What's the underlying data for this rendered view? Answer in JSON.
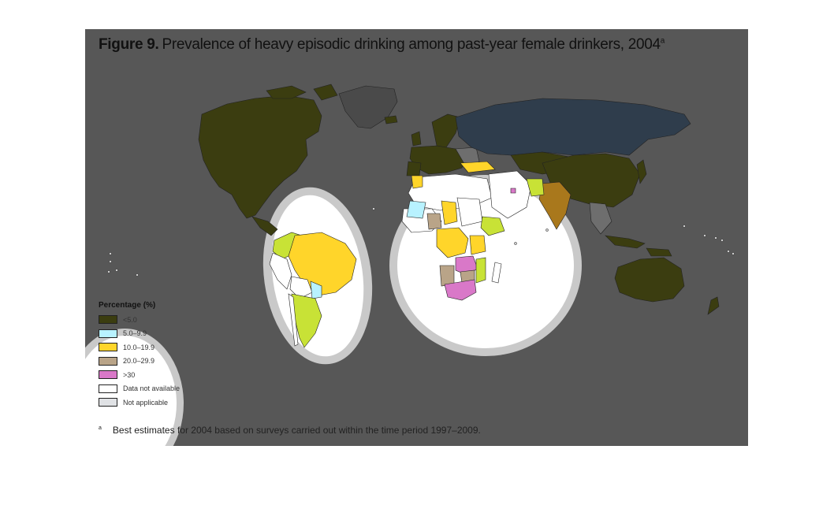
{
  "figure_label": "Figure 9.",
  "title": "Prevalence of heavy episodic drinking among past-year female drinkers, 2004",
  "title_note": "a",
  "legend": {
    "title": "Percentage (%)",
    "items": [
      {
        "label": "<5.0",
        "color": "#3b3d10"
      },
      {
        "label": "5.0–9.9",
        "color": "#b8f2ff"
      },
      {
        "label": "10.0–19.9",
        "color": "#ffd52a"
      },
      {
        "label": "20.0–29.9",
        "color": "#b9a488"
      },
      {
        "label": ">30",
        "color": "#d978c8"
      },
      {
        "label": "Data not available",
        "color": "#ffffff"
      },
      {
        "label": "Not applicable",
        "color": "#e0e2e5"
      }
    ]
  },
  "footnote": {
    "marker": "a",
    "text": "Best estimates for 2004 based on surveys carried out within the time period 1997–2009."
  },
  "colors": {
    "background": "#575757",
    "dim_lt5": "#3b3d10",
    "dim_5_10": "#2f3d4c",
    "dim_10_20": "#a9781c",
    "na": "#6e6e6e"
  }
}
